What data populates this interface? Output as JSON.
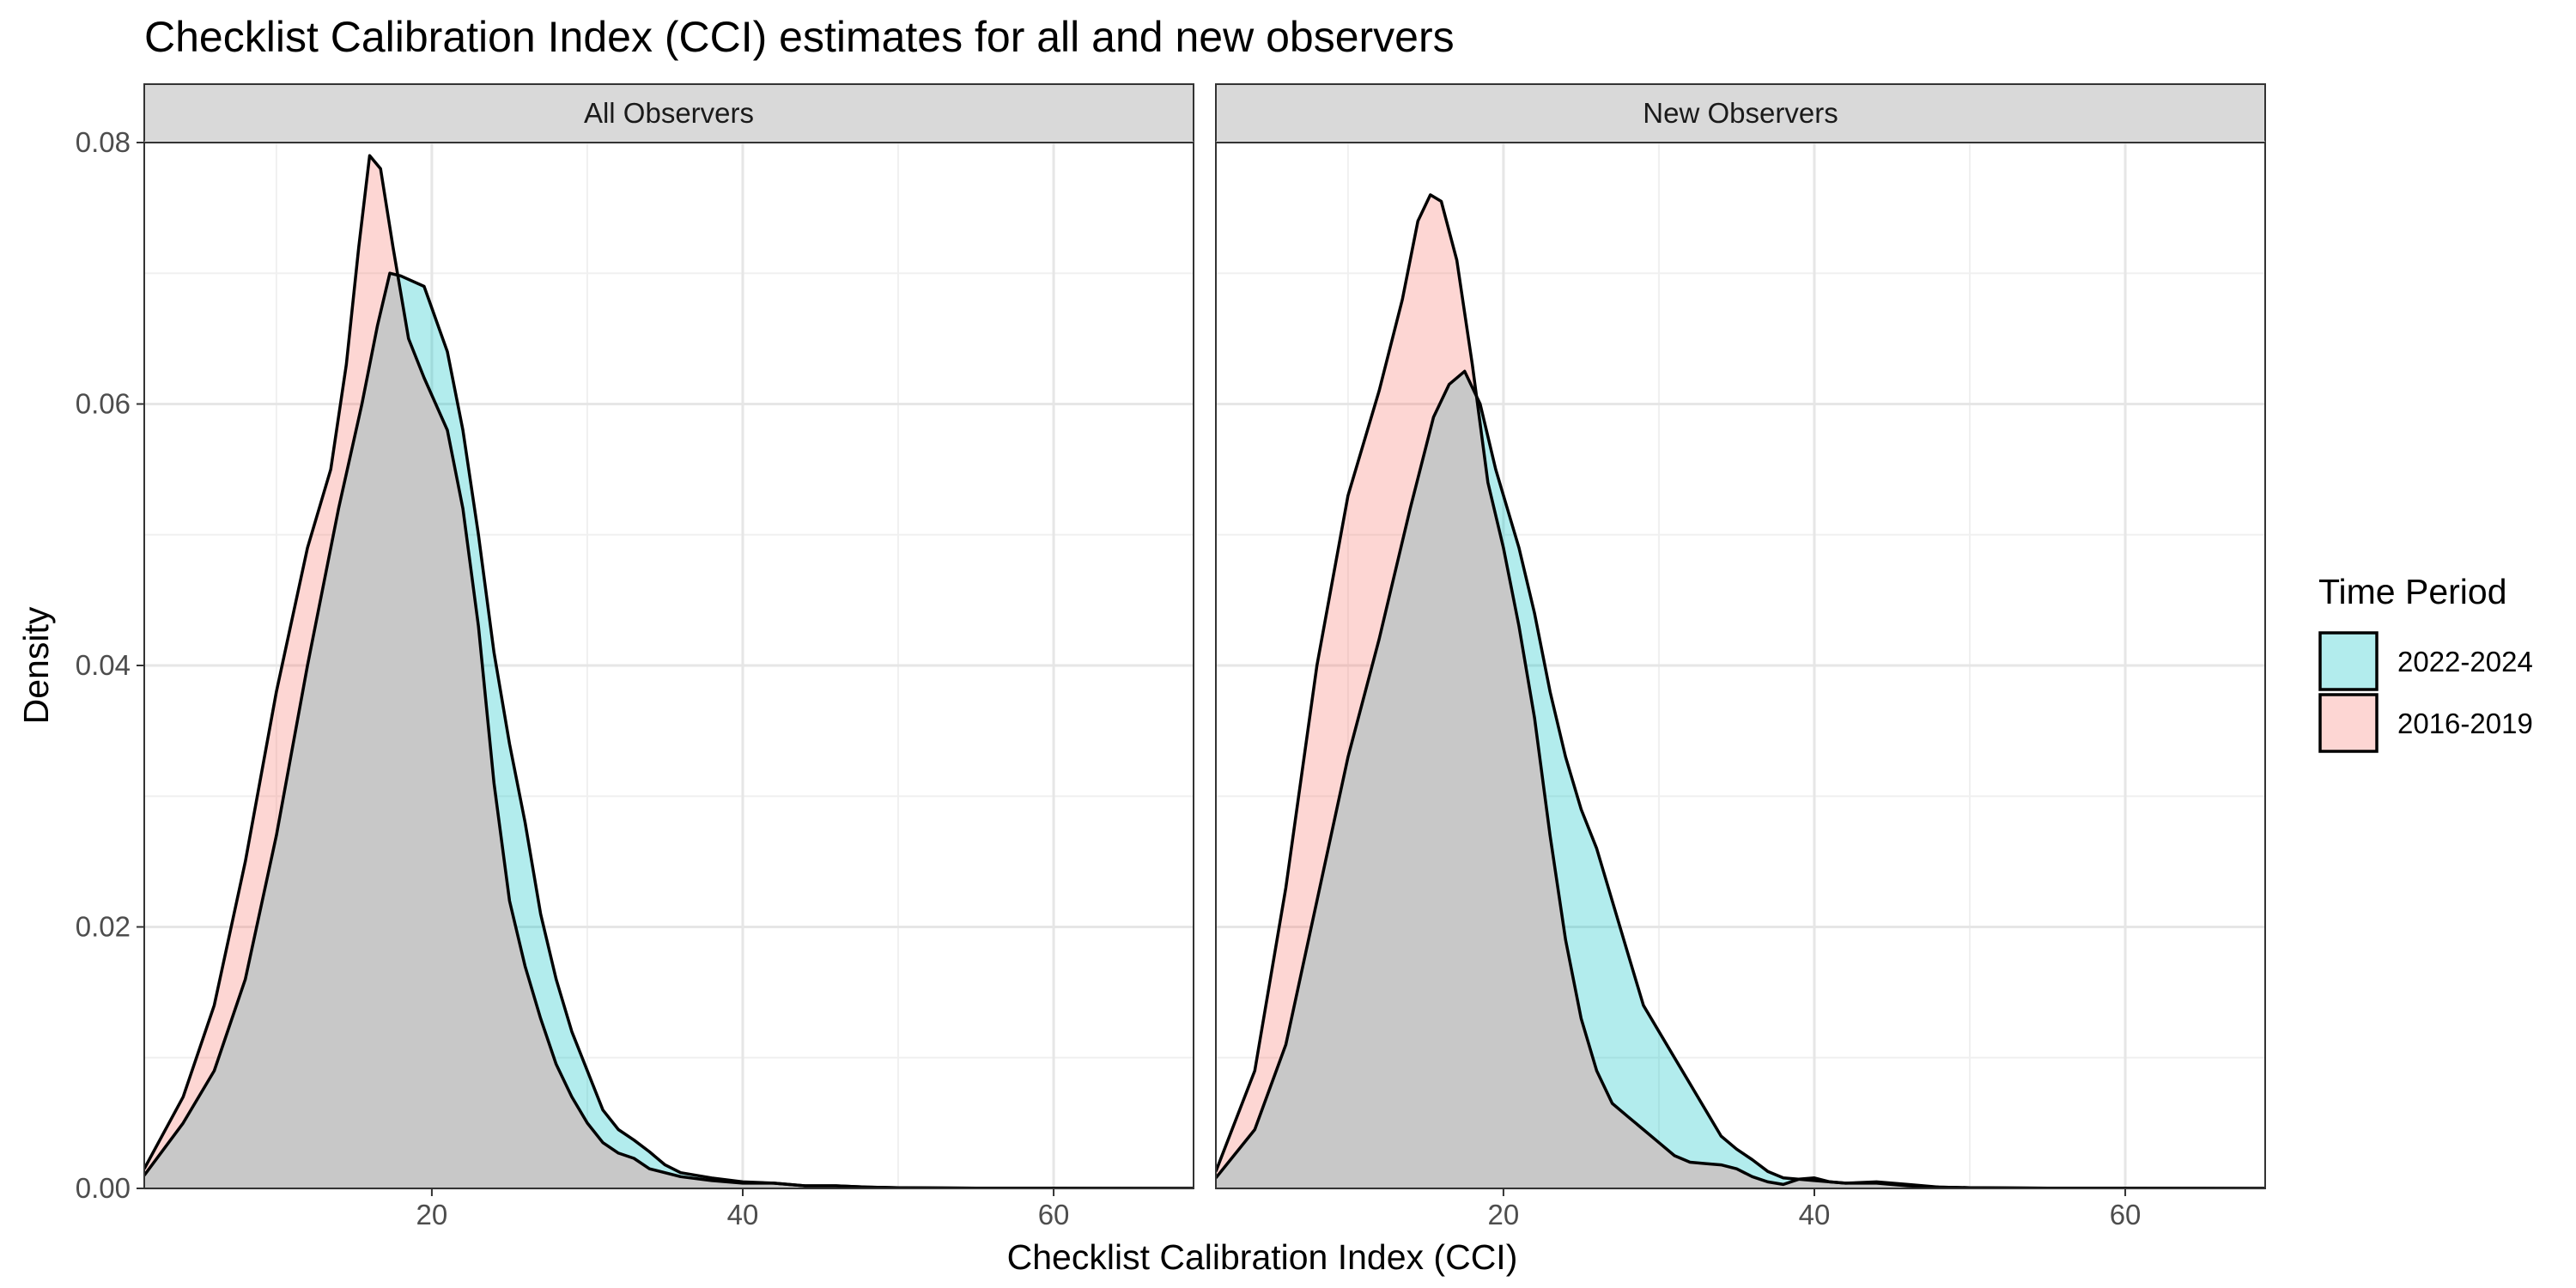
{
  "chart_data": {
    "type": "area",
    "title": "Checklist Calibration Index (CCI) estimates for all and new observers",
    "xlabel": "Checklist Calibration Index (CCI)",
    "ylabel": "Density",
    "xlim": [
      1.5,
      69
    ],
    "ylim": [
      0,
      0.08
    ],
    "x_ticks": [
      20,
      40,
      60
    ],
    "x_tick_labels": [
      "20",
      "40",
      "60"
    ],
    "y_ticks": [
      0,
      0.02,
      0.04,
      0.06,
      0.08
    ],
    "y_tick_labels": [
      "0.00",
      "0.02",
      "0.04",
      "0.06",
      "0.08"
    ],
    "grid": true,
    "legend": {
      "title": "Time Period",
      "position": "right",
      "entries": [
        {
          "label": "2022-2024",
          "color": "#00BFC4"
        },
        {
          "label": "2016-2019",
          "color": "#F8766D"
        }
      ]
    },
    "overlap_color": "#c8c8c8",
    "panels": [
      {
        "strip": "All Observers",
        "series": [
          {
            "name": "2022-2024",
            "color": "#00BFC4",
            "points": [
              [
                1.5,
                0.001
              ],
              [
                4,
                0.005
              ],
              [
                6,
                0.009
              ],
              [
                8,
                0.016
              ],
              [
                10,
                0.027
              ],
              [
                12,
                0.04
              ],
              [
                14,
                0.052
              ],
              [
                15.5,
                0.06
              ],
              [
                16.5,
                0.066
              ],
              [
                17.3,
                0.07
              ],
              [
                18,
                0.0698
              ],
              [
                19.5,
                0.069
              ],
              [
                21,
                0.064
              ],
              [
                22,
                0.058
              ],
              [
                23,
                0.05
              ],
              [
                24,
                0.041
              ],
              [
                25,
                0.034
              ],
              [
                26,
                0.028
              ],
              [
                27,
                0.021
              ],
              [
                28,
                0.016
              ],
              [
                29,
                0.012
              ],
              [
                30,
                0.009
              ],
              [
                31,
                0.006
              ],
              [
                32,
                0.0045
              ],
              [
                33,
                0.0037
              ],
              [
                34,
                0.0028
              ],
              [
                35,
                0.0018
              ],
              [
                36,
                0.0012
              ],
              [
                38,
                0.0008
              ],
              [
                40,
                0.0005
              ],
              [
                42,
                0.0004
              ],
              [
                44,
                0.0002
              ],
              [
                46,
                0.0002
              ],
              [
                48,
                0.0001
              ],
              [
                50,
                5e-05
              ],
              [
                55,
                2e-05
              ],
              [
                60,
                1e-05
              ],
              [
                69,
                0.0
              ]
            ]
          },
          {
            "name": "2016-2019",
            "color": "#F8766D",
            "points": [
              [
                1.5,
                0.0015
              ],
              [
                4,
                0.007
              ],
              [
                6,
                0.014
              ],
              [
                8,
                0.025
              ],
              [
                10,
                0.038
              ],
              [
                12,
                0.049
              ],
              [
                13.5,
                0.055
              ],
              [
                14.5,
                0.063
              ],
              [
                15.3,
                0.072
              ],
              [
                16,
                0.079
              ],
              [
                16.7,
                0.078
              ],
              [
                17.5,
                0.072
              ],
              [
                18.5,
                0.065
              ],
              [
                19.5,
                0.062
              ],
              [
                21,
                0.058
              ],
              [
                22,
                0.052
              ],
              [
                23,
                0.043
              ],
              [
                24,
                0.031
              ],
              [
                25,
                0.022
              ],
              [
                26,
                0.017
              ],
              [
                27,
                0.013
              ],
              [
                28,
                0.0095
              ],
              [
                29,
                0.007
              ],
              [
                30,
                0.005
              ],
              [
                31,
                0.0035
              ],
              [
                32,
                0.0027
              ],
              [
                33,
                0.0023
              ],
              [
                34,
                0.0015
              ],
              [
                36,
                0.0009
              ],
              [
                38,
                0.0006
              ],
              [
                40,
                0.0004
              ],
              [
                42,
                0.0004
              ],
              [
                44,
                0.0002
              ],
              [
                46,
                0.0002
              ],
              [
                48,
                0.0001
              ],
              [
                50,
                5e-05
              ],
              [
                55,
                2e-05
              ],
              [
                60,
                1e-05
              ],
              [
                69,
                0.0
              ]
            ]
          }
        ]
      },
      {
        "strip": "New Observers",
        "series": [
          {
            "name": "2022-2024",
            "color": "#00BFC4",
            "points": [
              [
                1.5,
                0.0008
              ],
              [
                4,
                0.0045
              ],
              [
                6,
                0.011
              ],
              [
                8,
                0.022
              ],
              [
                10,
                0.033
              ],
              [
                12,
                0.042
              ],
              [
                14,
                0.052
              ],
              [
                15.5,
                0.059
              ],
              [
                16.5,
                0.0615
              ],
              [
                17.5,
                0.0625
              ],
              [
                18.5,
                0.06
              ],
              [
                19.5,
                0.055
              ],
              [
                21,
                0.049
              ],
              [
                22,
                0.044
              ],
              [
                23,
                0.038
              ],
              [
                24,
                0.033
              ],
              [
                25,
                0.029
              ],
              [
                26,
                0.026
              ],
              [
                27,
                0.022
              ],
              [
                28,
                0.018
              ],
              [
                29,
                0.014
              ],
              [
                30,
                0.012
              ],
              [
                31,
                0.01
              ],
              [
                32,
                0.008
              ],
              [
                33,
                0.006
              ],
              [
                34,
                0.004
              ],
              [
                35,
                0.003
              ],
              [
                36,
                0.0022
              ],
              [
                37,
                0.0013
              ],
              [
                38,
                0.0008
              ],
              [
                40,
                0.0006
              ],
              [
                42,
                0.0004
              ],
              [
                44,
                0.0005
              ],
              [
                46,
                0.0003
              ],
              [
                48,
                0.0001
              ],
              [
                50,
                5e-05
              ],
              [
                55,
                2e-05
              ],
              [
                60,
                1e-05
              ],
              [
                69,
                0.0
              ]
            ]
          },
          {
            "name": "2016-2019",
            "color": "#F8766D",
            "points": [
              [
                1.5,
                0.0013
              ],
              [
                4,
                0.009
              ],
              [
                6,
                0.023
              ],
              [
                8,
                0.04
              ],
              [
                10,
                0.053
              ],
              [
                12,
                0.061
              ],
              [
                13.5,
                0.068
              ],
              [
                14.5,
                0.074
              ],
              [
                15.3,
                0.076
              ],
              [
                16,
                0.0755
              ],
              [
                17,
                0.071
              ],
              [
                18,
                0.063
              ],
              [
                19,
                0.054
              ],
              [
                20,
                0.049
              ],
              [
                21,
                0.043
              ],
              [
                22,
                0.036
              ],
              [
                23,
                0.027
              ],
              [
                24,
                0.019
              ],
              [
                25,
                0.013
              ],
              [
                26,
                0.009
              ],
              [
                27,
                0.0065
              ],
              [
                28,
                0.0055
              ],
              [
                29,
                0.0045
              ],
              [
                30,
                0.0035
              ],
              [
                31,
                0.0025
              ],
              [
                32,
                0.002
              ],
              [
                33,
                0.0019
              ],
              [
                34,
                0.0018
              ],
              [
                35,
                0.0015
              ],
              [
                36,
                0.0009
              ],
              [
                37,
                0.0005
              ],
              [
                38,
                0.0003
              ],
              [
                39,
                0.0007
              ],
              [
                40,
                0.0008
              ],
              [
                41,
                0.0005
              ],
              [
                42,
                0.0004
              ],
              [
                44,
                0.0004
              ],
              [
                46,
                0.0002
              ],
              [
                48,
                0.0001
              ],
              [
                50,
                5e-05
              ],
              [
                55,
                2e-05
              ],
              [
                60,
                1e-05
              ],
              [
                69,
                0.0
              ]
            ]
          }
        ]
      }
    ]
  }
}
